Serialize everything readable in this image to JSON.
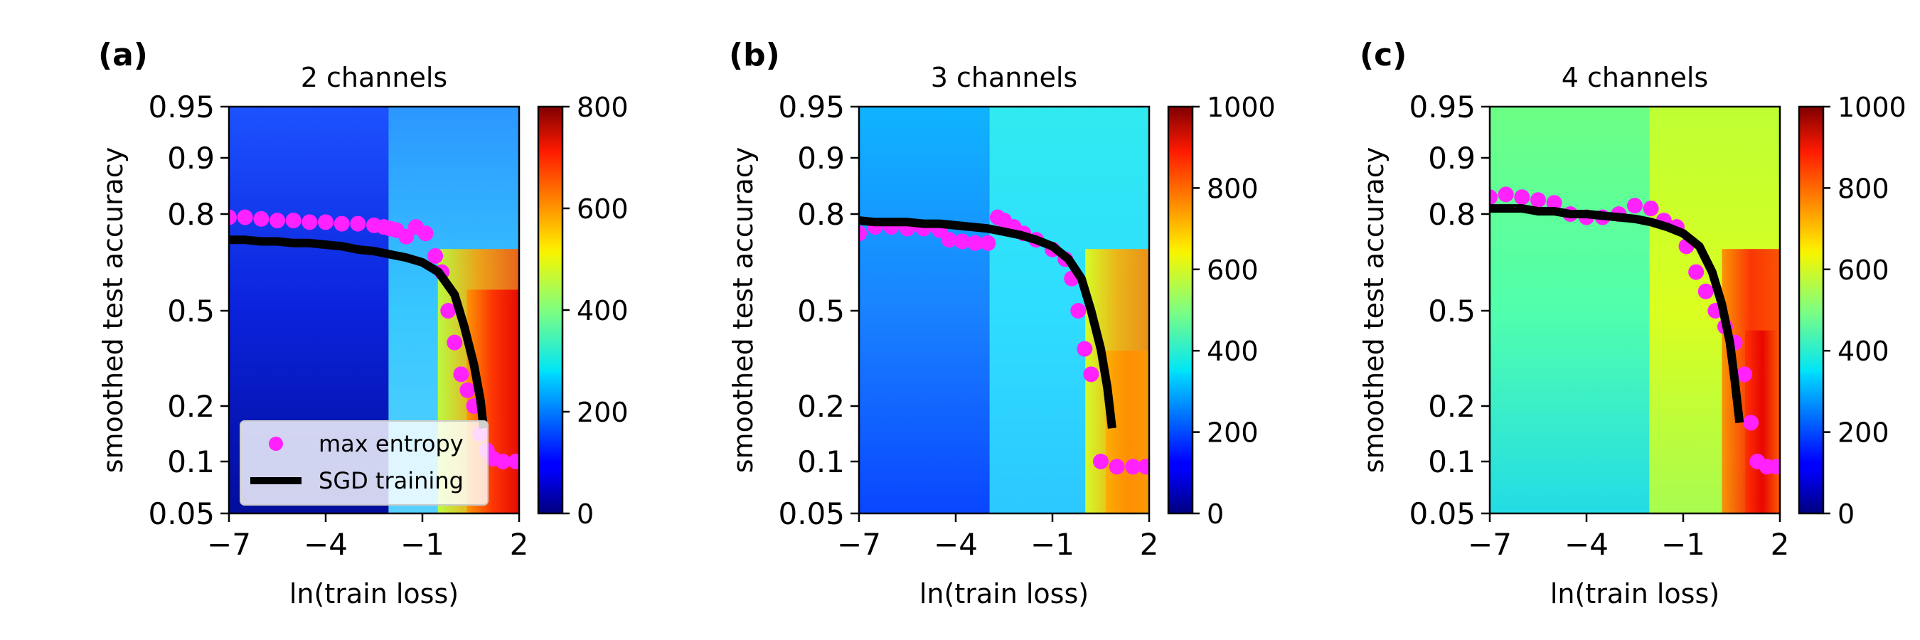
{
  "chart_data": [
    {
      "type": "heatmap",
      "panel_label": "(a)",
      "title": "2 channels",
      "xlabel": "ln(train loss)",
      "ylabel": "smoothed test accuracy",
      "xlim": [
        -7,
        2
      ],
      "ylim": [
        0.05,
        0.95
      ],
      "xticks": [
        -7,
        -4,
        -1,
        2
      ],
      "xtick_labels": [
        "−7",
        "−4",
        "−1",
        "2"
      ],
      "yticks": [
        0.05,
        0.1,
        0.2,
        0.5,
        0.8,
        0.9,
        0.95
      ],
      "ytick_labels": [
        "0.05",
        "0.1",
        "0.2",
        "0.5",
        "0.8",
        "0.9",
        "0.95"
      ],
      "colorbar": {
        "min": 0,
        "max": 800,
        "ticks": [
          0,
          200,
          400,
          600,
          800
        ],
        "tick_labels": [
          "0",
          "200",
          "400",
          "600",
          "800"
        ],
        "colormap": "jet"
      },
      "legend": {
        "position": "lower-left",
        "entries": [
          "max entropy",
          "SGD training"
        ]
      },
      "series": [
        {
          "name": "max entropy",
          "style": "dots",
          "color": "#ff22ff",
          "x": [
            -7,
            -6.5,
            -6,
            -5.5,
            -5,
            -4.5,
            -4,
            -3.5,
            -3,
            -2.5,
            -2.2,
            -2.0,
            -1.8,
            -1.5,
            -1.2,
            -0.9,
            -0.6,
            -0.4,
            -0.2,
            0.0,
            0.2,
            0.4,
            0.6,
            0.8,
            1.0,
            1.2,
            1.5,
            1.9
          ],
          "y": [
            0.79,
            0.79,
            0.785,
            0.78,
            0.78,
            0.775,
            0.775,
            0.77,
            0.77,
            0.765,
            0.76,
            0.755,
            0.75,
            0.73,
            0.76,
            0.74,
            0.67,
            0.62,
            0.5,
            0.4,
            0.3,
            0.25,
            0.2,
            0.15,
            0.12,
            0.105,
            0.1,
            0.1
          ]
        },
        {
          "name": "SGD training",
          "style": "line",
          "color": "#000000",
          "x": [
            -7,
            -6.5,
            -6,
            -5.5,
            -5,
            -4.5,
            -4,
            -3.5,
            -3,
            -2.5,
            -2,
            -1.5,
            -1.0,
            -0.5,
            0.0,
            0.3,
            0.6,
            0.8,
            0.9
          ],
          "y": [
            0.72,
            0.72,
            0.715,
            0.715,
            0.71,
            0.71,
            0.705,
            0.7,
            0.69,
            0.685,
            0.675,
            0.665,
            0.65,
            0.62,
            0.55,
            0.45,
            0.33,
            0.22,
            0.16
          ]
        }
      ]
    },
    {
      "type": "heatmap",
      "panel_label": "(b)",
      "title": "3 channels",
      "xlabel": "ln(train loss)",
      "ylabel": "smoothed test accuracy",
      "xlim": [
        -7,
        2
      ],
      "ylim": [
        0.05,
        0.95
      ],
      "xticks": [
        -7,
        -4,
        -1,
        2
      ],
      "xtick_labels": [
        "−7",
        "−4",
        "−1",
        "2"
      ],
      "yticks": [
        0.05,
        0.1,
        0.2,
        0.5,
        0.8,
        0.9,
        0.95
      ],
      "ytick_labels": [
        "0.05",
        "0.1",
        "0.2",
        "0.5",
        "0.8",
        "0.9",
        "0.95"
      ],
      "colorbar": {
        "min": 0,
        "max": 1000,
        "ticks": [
          0,
          200,
          400,
          600,
          800,
          1000
        ],
        "tick_labels": [
          "0",
          "200",
          "400",
          "600",
          "800",
          "1000"
        ],
        "colormap": "jet"
      },
      "series": [
        {
          "name": "max entropy",
          "style": "dots",
          "color": "#ff22ff",
          "x": [
            -7,
            -6.5,
            -6,
            -5.5,
            -5,
            -4.5,
            -4.2,
            -3.8,
            -3.4,
            -3.0,
            -2.7,
            -2.5,
            -2.2,
            -1.9,
            -1.5,
            -1.0,
            -0.6,
            -0.4,
            -0.2,
            0.0,
            0.2,
            0.5,
            1.0,
            1.5,
            1.9
          ],
          "y": [
            0.74,
            0.76,
            0.76,
            0.755,
            0.755,
            0.75,
            0.72,
            0.715,
            0.71,
            0.71,
            0.79,
            0.78,
            0.76,
            0.74,
            0.72,
            0.69,
            0.66,
            0.6,
            0.5,
            0.38,
            0.3,
            0.1,
            0.095,
            0.095,
            0.095
          ]
        },
        {
          "name": "SGD training",
          "style": "line",
          "color": "#000000",
          "x": [
            -7,
            -6.5,
            -6,
            -5.5,
            -5,
            -4.5,
            -4,
            -3.5,
            -3,
            -2.5,
            -2,
            -1.5,
            -1.0,
            -0.5,
            -0.1,
            0.2,
            0.5,
            0.7,
            0.85
          ],
          "y": [
            0.78,
            0.775,
            0.775,
            0.775,
            0.77,
            0.77,
            0.765,
            0.76,
            0.755,
            0.745,
            0.735,
            0.72,
            0.7,
            0.66,
            0.6,
            0.5,
            0.38,
            0.26,
            0.16
          ]
        }
      ]
    },
    {
      "type": "heatmap",
      "panel_label": "(c)",
      "title": "4 channels",
      "xlabel": "ln(train loss)",
      "ylabel": "smoothed test accuracy",
      "xlim": [
        -7,
        2
      ],
      "ylim": [
        0.05,
        0.95
      ],
      "xticks": [
        -7,
        -4,
        -1,
        2
      ],
      "xtick_labels": [
        "−7",
        "−4",
        "−1",
        "2"
      ],
      "yticks": [
        0.05,
        0.1,
        0.2,
        0.5,
        0.8,
        0.9,
        0.95
      ],
      "ytick_labels": [
        "0.05",
        "0.1",
        "0.2",
        "0.5",
        "0.8",
        "0.9",
        "0.95"
      ],
      "colorbar": {
        "min": 0,
        "max": 1000,
        "ticks": [
          0,
          200,
          400,
          600,
          800,
          1000
        ],
        "tick_labels": [
          "0",
          "200",
          "400",
          "600",
          "800",
          "1000"
        ],
        "colormap": "jet"
      },
      "series": [
        {
          "name": "max entropy",
          "style": "dots",
          "color": "#ff22ff",
          "x": [
            -7,
            -6.5,
            -6,
            -5.5,
            -5,
            -4.5,
            -4,
            -3.5,
            -3,
            -2.5,
            -2,
            -1.6,
            -1.2,
            -0.9,
            -0.6,
            -0.3,
            0.0,
            0.3,
            0.6,
            0.9,
            1.1,
            1.3,
            1.6,
            1.9
          ],
          "y": [
            0.83,
            0.835,
            0.83,
            0.825,
            0.82,
            0.8,
            0.79,
            0.79,
            0.8,
            0.815,
            0.81,
            0.78,
            0.76,
            0.7,
            0.62,
            0.56,
            0.5,
            0.45,
            0.4,
            0.3,
            0.17,
            0.1,
            0.095,
            0.095
          ]
        },
        {
          "name": "SGD training",
          "style": "line",
          "color": "#000000",
          "x": [
            -7,
            -6.5,
            -6,
            -5.5,
            -5,
            -4.5,
            -4,
            -3.5,
            -3,
            -2.5,
            -2,
            -1.5,
            -1.0,
            -0.5,
            -0.1,
            0.2,
            0.45,
            0.6,
            0.75
          ],
          "y": [
            0.81,
            0.81,
            0.81,
            0.805,
            0.805,
            0.8,
            0.8,
            0.795,
            0.79,
            0.785,
            0.775,
            0.76,
            0.74,
            0.7,
            0.62,
            0.52,
            0.4,
            0.28,
            0.17
          ]
        }
      ]
    }
  ]
}
